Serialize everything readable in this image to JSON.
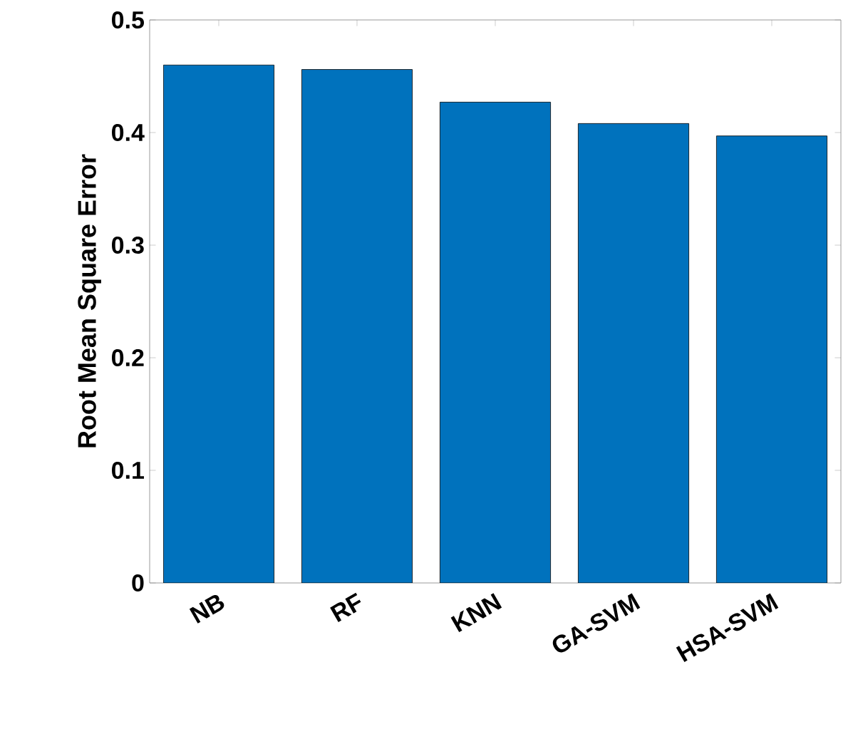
{
  "chart_data": {
    "type": "bar",
    "ylabel": "Root Mean Square Error",
    "categories": [
      "NB",
      "RF",
      "KNN",
      "GA-SVM",
      "HSA-SVM"
    ],
    "values": [
      0.46,
      0.456,
      0.427,
      0.408,
      0.397
    ],
    "color": "#0072bd",
    "ylim": [
      0,
      0.5
    ],
    "yticks": [
      0,
      0.1,
      0.2,
      0.3,
      0.4,
      0.5
    ]
  }
}
